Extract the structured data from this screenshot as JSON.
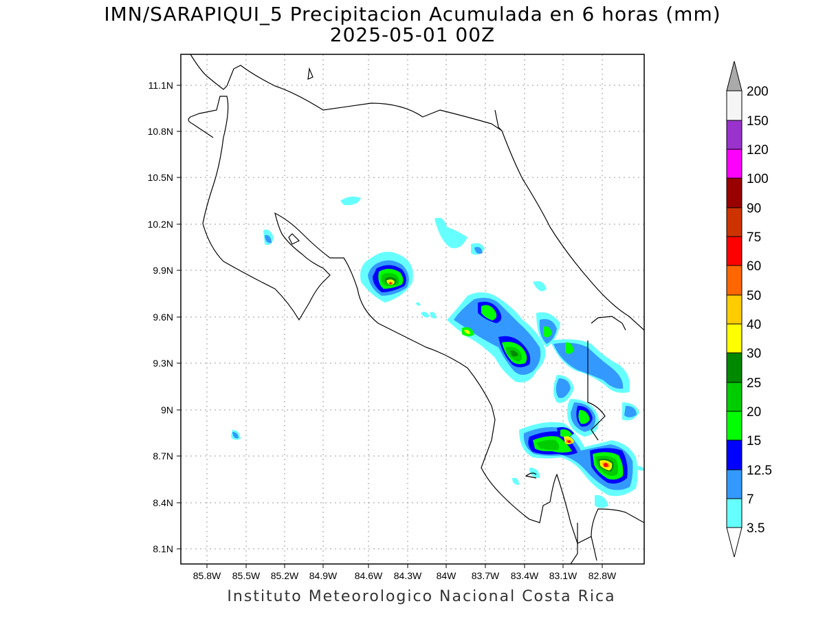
{
  "header": {
    "title_line1": "IMN/SARAPIQUI_5 Precipitacion Acumulada en 6 horas (mm)",
    "title_line2": "2025-05-01 00Z"
  },
  "footer": "Instituto Meteorologico Nacional Costa Rica",
  "map": {
    "lon_range": [
      -86.02,
      -82.43
    ],
    "lat_range": [
      8.02,
      11.29
    ],
    "lon_ticks": [
      "85.8W",
      "85.5W",
      "85.2W",
      "84.9W",
      "84.6W",
      "84.3W",
      "84W",
      "83.7W",
      "83.4W",
      "83.1W",
      "82.8W"
    ],
    "lat_ticks": [
      "11.1N",
      "10.8N",
      "10.5N",
      "10.2N",
      "9.9N",
      "9.6N",
      "9.3N",
      "9N",
      "8.7N",
      "8.4N",
      "8.1N"
    ],
    "grid": true
  },
  "colorbar": {
    "labels": [
      "3.5",
      "7",
      "12.5",
      "15",
      "20",
      "25",
      "30",
      "40",
      "50",
      "60",
      "75",
      "90",
      "100",
      "120",
      "150",
      "200"
    ],
    "colors": [
      "#66ffff",
      "#3399ff",
      "#0000ff",
      "#00ff00",
      "#00cc00",
      "#008800",
      "#ffff00",
      "#ffcc00",
      "#ff6600",
      "#ff0000",
      "#cc3300",
      "#990000",
      "#ff00ff",
      "#9933cc",
      "#f5f5f5",
      "#aaaaaa"
    ]
  }
}
